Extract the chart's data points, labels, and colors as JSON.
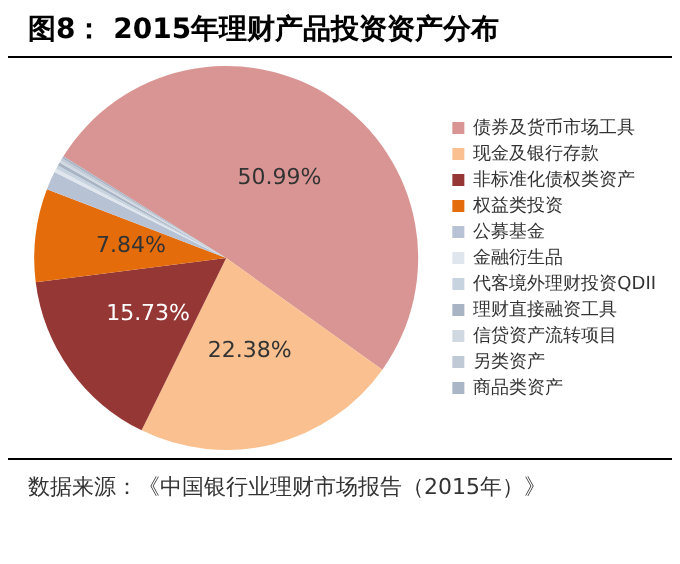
{
  "chart_data": {
    "type": "pie",
    "title": "图8：  2015年理财产品投资资产分布",
    "categories": [
      "债券及货币市场工具",
      "现金及银行存款",
      "非标准化债权类资产",
      "权益类投资",
      "公募基金",
      "金融衍生品",
      "代客境外理财投资QDII",
      "理财直接融资工具",
      "信贷资产流转项目",
      "另类资产",
      "商品类资产"
    ],
    "values": [
      50.99,
      22.38,
      15.73,
      7.84,
      1.56,
      0.3,
      0.3,
      0.3,
      0.2,
      0.2,
      0.2
    ],
    "colors": [
      "#d99594",
      "#fac090",
      "#953735",
      "#e46c0a",
      "#b7c3d5",
      "#dfe6ee",
      "#c8d3e0",
      "#a8b4c4",
      "#d0d8e2",
      "#c0cad6",
      "#aab6c6"
    ],
    "value_labels": [
      "50.99%",
      "22.38%",
      "15.73%",
      "7.84%",
      null,
      null,
      null,
      null,
      null,
      null,
      null
    ],
    "legend": "right",
    "annotations": [
      "数据来源：《中国银行业理财市场报告（2015年）》"
    ]
  }
}
